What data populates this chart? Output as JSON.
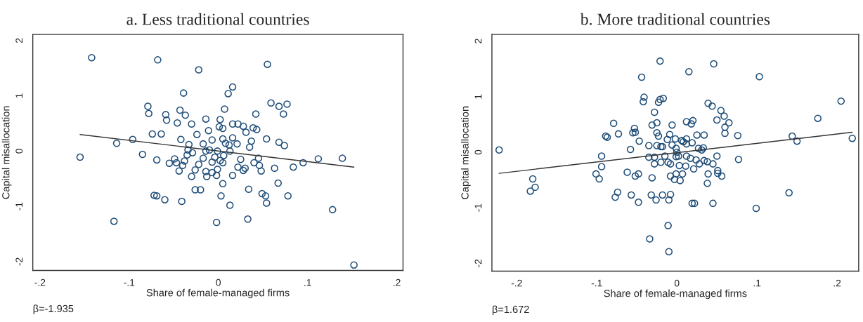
{
  "chart_data": [
    {
      "type": "scatter",
      "title": "a. Less traditional countries",
      "xlabel": "Share of female-managed firms",
      "ylabel": "Capital misallocation",
      "xlim": [
        -0.208,
        0.207
      ],
      "ylim": [
        -2.16,
        2.11
      ],
      "xticks": [
        {
          "value": -0.2,
          "label": "-.2"
        },
        {
          "value": -0.1,
          "label": "-.1"
        },
        0,
        {
          "value": 0.1,
          "label": ".1"
        },
        {
          "value": 0.2,
          "label": ".2"
        }
      ],
      "yticks": [
        -2,
        -1,
        0,
        1,
        2
      ],
      "annotations": [
        "β=-1.935"
      ],
      "series": [
        {
          "color": "#1f4e79",
          "marker": "circle",
          "x": [
            -0.142,
            -0.068,
            -0.022,
            -0.039,
            -0.079,
            -0.078,
            -0.059,
            -0.058,
            -0.043,
            -0.037,
            -0.046,
            -0.03,
            -0.014,
            -0.011,
            -0.074,
            -0.064,
            -0.024,
            -0.096,
            -0.114,
            -0.042,
            -0.033,
            -0.017,
            -0.007,
            -0.155,
            -0.085,
            -0.069,
            -0.034,
            -0.029,
            -0.035,
            -0.055,
            -0.049,
            -0.047,
            -0.038,
            -0.04,
            -0.044,
            -0.022,
            -0.017,
            -0.014,
            -0.01,
            -0.007,
            -0.026,
            -0.03,
            -0.014,
            -0.013,
            -0.026,
            -0.02,
            -0.072,
            -0.069,
            -0.06,
            -0.041,
            -0.117,
            -0.002,
            0.055,
            0.016,
            0.011,
            0.059,
            0.068,
            0.077,
            0.073,
            0.042,
            0.007,
            0.002,
            0.001,
            0.005,
            0.016,
            0.022,
            0.028,
            0.039,
            0.043,
            0.031,
            0.016,
            0.005,
            0.008,
            0.021,
            0.012,
            0.037,
            0.035,
            0.054,
            0.068,
            0.074,
            -0.001,
            0.013,
            0.006,
            -0.004,
            0.002,
            0.005,
            0.025,
            0.045,
            0.04,
            0.046,
            0.022,
            0.03,
            0.028,
            0.048,
            0.063,
            0.084,
            0.095,
            0.112,
            0.139,
            -0.001,
            -0.002,
            0.016,
            -0.007,
            0.005,
            0.067,
            0.034,
            0.049,
            0.053,
            0.078,
            0.003,
            0.054,
            0.013,
            0.033,
            0.128,
            0.152
          ],
          "values": [
            1.69,
            1.65,
            1.47,
            1.05,
            0.81,
            0.68,
            0.66,
            0.56,
            0.74,
            0.65,
            0.51,
            0.49,
            0.58,
            0.37,
            0.31,
            0.31,
            0.3,
            0.21,
            0.14,
            0.21,
            0.12,
            0.13,
            0.2,
            -0.11,
            -0.06,
            -0.16,
            0.02,
            -0.03,
            -0.07,
            -0.22,
            -0.14,
            -0.21,
            -0.18,
            -0.26,
            -0.36,
            -0.24,
            -0.13,
            0.0,
            0.02,
            -0.2,
            -0.34,
            -0.46,
            -0.37,
            -0.46,
            -0.7,
            -0.7,
            -0.8,
            -0.81,
            -0.88,
            -0.91,
            -1.27,
            -1.29,
            1.57,
            1.16,
            1.04,
            0.87,
            0.81,
            0.85,
            0.67,
            0.67,
            0.76,
            0.57,
            0.44,
            0.41,
            0.49,
            0.49,
            0.45,
            0.42,
            0.39,
            0.34,
            0.24,
            0.22,
            0.14,
            0.13,
            0.11,
            0.18,
            0.07,
            0.22,
            0.16,
            0.1,
            0.0,
            0.0,
            -0.08,
            -0.11,
            -0.17,
            -0.21,
            -0.15,
            -0.13,
            -0.21,
            -0.26,
            -0.29,
            -0.31,
            -0.35,
            -0.36,
            -0.31,
            -0.29,
            -0.21,
            -0.14,
            -0.13,
            -0.33,
            -0.44,
            -0.44,
            -0.39,
            -0.59,
            -0.58,
            -0.69,
            -0.77,
            -0.81,
            -0.81,
            -0.81,
            -0.94,
            -0.98,
            -1.23,
            -1.06,
            -2.06
          ]
        },
        {
          "type": "line",
          "color": "#333333",
          "marker": "none",
          "line_style": "solid",
          "x": [
            -0.155,
            0.152
          ],
          "values": [
            0.3,
            -0.29
          ]
        }
      ]
    },
    {
      "type": "scatter",
      "title": "b. More traditional countries",
      "xlabel": "Share of female-managed firms",
      "ylabel": "Capital misallocation",
      "xlim": [
        -0.231,
        0.227
      ],
      "ylim": [
        -2.14,
        2.12
      ],
      "xticks": [
        {
          "value": -0.2,
          "label": "-.2"
        },
        {
          "value": -0.1,
          "label": "-.1"
        },
        0,
        {
          "value": 0.1,
          "label": ".1"
        },
        {
          "value": 0.2,
          "label": ".2"
        }
      ],
      "yticks": [
        -2,
        -1,
        0,
        1,
        2
      ],
      "annotations": [
        "β=1.672"
      ],
      "series": [
        {
          "color": "#1f4e79",
          "marker": "circle",
          "x": [
            -0.222,
            -0.18,
            -0.177,
            -0.183,
            -0.101,
            -0.097,
            -0.094,
            -0.094,
            -0.089,
            -0.087,
            -0.079,
            -0.073,
            -0.077,
            -0.074,
            -0.062,
            -0.058,
            -0.057,
            -0.055,
            -0.053,
            -0.052,
            -0.052,
            -0.048,
            -0.047,
            -0.048,
            -0.044,
            -0.041,
            -0.042,
            -0.035,
            -0.035,
            -0.031,
            -0.028,
            -0.031,
            -0.034,
            -0.032,
            -0.026,
            -0.028,
            -0.028,
            -0.025,
            -0.025,
            -0.023,
            -0.025,
            -0.021,
            -0.023,
            -0.021,
            -0.017,
            -0.02,
            -0.018,
            -0.02,
            -0.015,
            -0.018,
            -0.012,
            -0.009,
            -0.006,
            -0.006,
            -0.011,
            -0.008,
            -0.008,
            -0.008,
            -0.01,
            -0.011,
            -0.01,
            0.046,
            0.015,
            0.103,
            0.205,
            0.176,
            0.039,
            0.044,
            0.055,
            0.059,
            0.065,
            0.05,
            0.06,
            0.06,
            0.012,
            0.02,
            0.018,
            -0.002,
            0.025,
            0.034,
            0.076,
            0.006,
            0.008,
            0.012,
            0.019,
            0.012,
            -0.001,
            0.0,
            -0.001,
            0.002,
            0.027,
            0.033,
            0.031,
            0.012,
            0.017,
            0.024,
            0.034,
            0.038,
            0.05,
            0.003,
            0.011,
            0.021,
            0.028,
            0.045,
            0.077,
            -0.001,
            0.007,
            -0.003,
            0.004,
            0.039,
            0.051,
            0.051,
            0.056,
            0.038,
            0.019,
            0.022,
            0.045,
            0.14,
            0.099,
            0.144,
            0.15,
            0.219
          ],
          "values": [
            0.04,
            -0.48,
            -0.63,
            -0.7,
            -0.39,
            -0.48,
            -0.07,
            -0.26,
            0.29,
            0.27,
            0.52,
            0.33,
            -0.81,
            -0.72,
            -0.36,
            0.05,
            -0.77,
            0.35,
            0.43,
            0.36,
            -0.43,
            -0.39,
            0.2,
            -0.9,
            1.35,
            0.99,
            0.91,
            0.12,
            -0.09,
            0.49,
            0.72,
            -0.46,
            -1.56,
            -0.77,
            -0.86,
            -0.09,
            -0.21,
            0.53,
            0.35,
            0.29,
            0.12,
            1.64,
            0.9,
            0.95,
            0.97,
            0.1,
            0.1,
            -0.18,
            -0.07,
            -0.77,
            0.23,
            0.32,
            0.49,
            0.13,
            -0.18,
            -0.21,
            -0.43,
            -0.76,
            -0.86,
            -1.32,
            -1.79,
            1.59,
            1.45,
            1.36,
            0.92,
            0.61,
            0.88,
            0.83,
            0.75,
            0.65,
            0.53,
            0.58,
            0.45,
            0.34,
            0.55,
            0.57,
            0.51,
            0.24,
            0.31,
            0.31,
            0.3,
            0.21,
            0.19,
            0.24,
            0.17,
            0.15,
            0.07,
            0.0,
            -0.08,
            -0.07,
            0.07,
            0.08,
            0.04,
            -0.07,
            -0.11,
            -0.14,
            -0.15,
            -0.17,
            -0.07,
            -0.24,
            -0.25,
            -0.3,
            -0.21,
            -0.21,
            -0.13,
            -0.39,
            -0.39,
            -0.49,
            -0.51,
            -0.39,
            -0.33,
            -0.38,
            -0.43,
            -0.56,
            -0.92,
            -0.92,
            -0.92,
            -0.73,
            -1.01,
            0.29,
            0.2,
            0.25
          ]
        },
        {
          "type": "line",
          "color": "#333333",
          "marker": "none",
          "line_style": "solid",
          "x": [
            -0.222,
            0.219
          ],
          "values": [
            -0.38,
            0.36
          ]
        }
      ]
    }
  ]
}
